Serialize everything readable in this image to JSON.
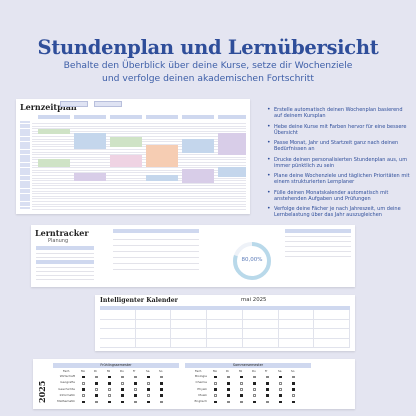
{
  "hero": {
    "title": "Stundenplan und Lernübersicht",
    "subtitle_line1": "Behalte den Überblick über deine Kurse, setze dir Wochenziele",
    "subtitle_line2": "und verfolge deinen akademischen Fortschritt"
  },
  "schedule": {
    "title": "Lernzeitplan"
  },
  "features": [
    "Erstelle automatisch deinen Wochenplan basierend auf deinem Kursplan",
    "Hebe deine Kurse mit Farben hervor für eine bessere Übersicht",
    "Passe Monat, Jahr und Startzeit ganz nach deinen Bedürfnissen an",
    "Drucke deinen personalisierten Stundenplan aus, um immer pünktlich zu sein",
    "Plane deine Wochenziele und täglichen Prioritäten mit einem strukturierten Lernplaner",
    "Fülle deinen Monatskalender automatisch mit anstehenden Aufgaben und Prüfungen",
    "Verfolge deine Fächer je nach Jahreszeit, um deine Lernbelastung über das Jahr auszugleichen"
  ],
  "tracker": {
    "title": "Lerntracker",
    "subtitle": "Planung",
    "donut_label": "80,00%",
    "donut_progress": 0.8,
    "donut_color": "#b9d9ea"
  },
  "calendar": {
    "title": "Intelligenter Kalender",
    "month": "mai 2025"
  },
  "semesters": {
    "year": "2025",
    "spring": {
      "title": "Frühlingssemester",
      "col_subject": "Fach",
      "days": [
        "Mo",
        "Di",
        "Mi",
        "Do",
        "Fr",
        "Sa",
        "So"
      ],
      "rows": [
        {
          "subject": "Wirtschaft",
          "marks": [
            1,
            0,
            1,
            0,
            0,
            1,
            0
          ]
        },
        {
          "subject": "Geografie",
          "marks": [
            0,
            1,
            1,
            0,
            1,
            0,
            1
          ]
        },
        {
          "subject": "Geschichte",
          "marks": [
            1,
            0,
            0,
            1,
            0,
            1,
            1
          ]
        },
        {
          "subject": "Informatik",
          "marks": [
            0,
            1,
            0,
            1,
            1,
            0,
            1
          ]
        },
        {
          "subject": "Mathematik",
          "marks": [
            1,
            0,
            1,
            1,
            0,
            1,
            0
          ]
        }
      ]
    },
    "summer": {
      "title": "Sommersemester",
      "col_subject": "Fach",
      "days": [
        "Mo",
        "Di",
        "Mi",
        "Do",
        "Fr",
        "Sa",
        "So"
      ],
      "rows": [
        {
          "subject": "Biologie",
          "marks": [
            1,
            0,
            1,
            0,
            0,
            1,
            0
          ]
        },
        {
          "subject": "Chemie",
          "marks": [
            0,
            1,
            0,
            1,
            1,
            0,
            1
          ]
        },
        {
          "subject": "Physik",
          "marks": [
            1,
            1,
            0,
            0,
            1,
            0,
            1
          ]
        },
        {
          "subject": "Musik",
          "marks": [
            0,
            1,
            1,
            0,
            1,
            1,
            0
          ]
        },
        {
          "subject": "Englisch",
          "marks": [
            1,
            0,
            0,
            1,
            0,
            1,
            1
          ]
        }
      ]
    }
  },
  "colors": {
    "title_blue": "#2f4e9a",
    "background": "#e4e5f1",
    "header_fill": "#cfd8ef",
    "course_green": "#cfe3c6",
    "course_orange": "#f6cdb3",
    "course_blue": "#c4d6ec",
    "course_purple": "#d8cde8",
    "course_pink": "#efd3e3"
  }
}
